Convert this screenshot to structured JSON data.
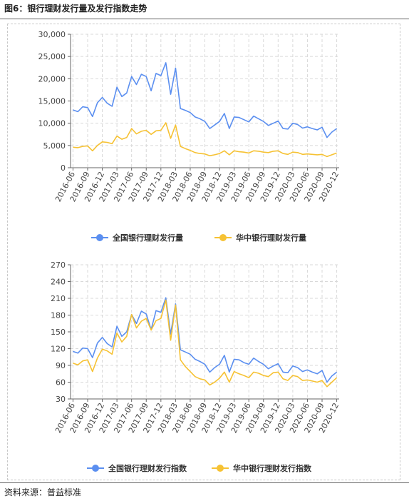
{
  "figure": {
    "title": "图6：银行理财发行量及发行指数走势",
    "source": "资料来源：普益标准"
  },
  "colors": {
    "national": "#5b8ff0",
    "central": "#f6c234",
    "grid": "#d9d9d9",
    "axis": "#666666"
  },
  "chart_data": [
    {
      "type": "line",
      "title": "",
      "xlabel": "",
      "ylabel": "",
      "ylim": [
        0,
        30000
      ],
      "yticks": [
        "0",
        "5,000",
        "10,000",
        "15,000",
        "20,000",
        "25,000",
        "30,000"
      ],
      "ytick_values": [
        0,
        5000,
        10000,
        15000,
        20000,
        25000,
        30000
      ],
      "x_tick_labels": [
        "2016-06",
        "2016-09",
        "2016-12",
        "2017-03",
        "2017-06",
        "2017-09",
        "2017-12",
        "2018-03",
        "2018-06",
        "2018-09",
        "2018-12",
        "2019-03",
        "2019-06",
        "2019-09",
        "2019-12",
        "2020-03",
        "2020-06",
        "2020-09",
        "2020-12"
      ],
      "grid": true,
      "legend_position": "bottom-center",
      "series": [
        {
          "name": "全国银行理财发行量",
          "values": [
            13000,
            12600,
            13700,
            13500,
            11500,
            14600,
            15800,
            14500,
            13800,
            18100,
            16000,
            16800,
            20500,
            18700,
            21000,
            20500,
            17300,
            21200,
            20700,
            23600,
            16500,
            22400,
            13300,
            12900,
            12400,
            11400,
            11000,
            10400,
            8800,
            9600,
            10400,
            12200,
            8800,
            11400,
            11300,
            10800,
            10300,
            11600,
            11000,
            10400,
            9500,
            10000,
            10500,
            8800,
            8700,
            10000,
            9700,
            8900,
            9200,
            8800,
            8500,
            9100,
            6800,
            8000,
            8800
          ]
        },
        {
          "name": "华中银行理财发行量",
          "values": [
            4600,
            4500,
            4800,
            4900,
            3800,
            5000,
            5800,
            5700,
            5400,
            7100,
            6400,
            6800,
            8800,
            7600,
            8200,
            8400,
            7500,
            8300,
            8400,
            10100,
            6600,
            9600,
            4800,
            4300,
            3900,
            3400,
            3200,
            3100,
            2700,
            2900,
            3200,
            3800,
            2900,
            3800,
            3600,
            3500,
            3300,
            3800,
            3700,
            3500,
            3400,
            3700,
            3800,
            3200,
            3000,
            3500,
            3400,
            3000,
            3100,
            3000,
            2900,
            3000,
            2500,
            2900,
            3300
          ]
        }
      ]
    },
    {
      "type": "line",
      "title": "",
      "xlabel": "",
      "ylabel": "",
      "ylim": [
        30,
        270
      ],
      "yticks": [
        "30",
        "60",
        "90",
        "120",
        "150",
        "180",
        "210",
        "240",
        "270"
      ],
      "ytick_values": [
        30,
        60,
        90,
        120,
        150,
        180,
        210,
        240,
        270
      ],
      "x_tick_labels": [
        "2016-06",
        "2016-09",
        "2016-12",
        "2017-03",
        "2017-06",
        "2017-09",
        "2017-12",
        "2018-03",
        "2018-06",
        "2018-09",
        "2018-12",
        "2019-03",
        "2019-06",
        "2019-09",
        "2019-12",
        "2020-03",
        "2020-06",
        "2020-09",
        "2020-12"
      ],
      "grid": true,
      "legend_position": "bottom-center",
      "series": [
        {
          "name": "全国银行理财发行指数",
          "values": [
            115,
            112,
            121,
            120,
            104,
            130,
            140,
            129,
            123,
            160,
            142,
            150,
            181,
            165,
            187,
            182,
            154,
            188,
            185,
            211,
            146,
            200,
            118,
            114,
            110,
            101,
            97,
            92,
            78,
            86,
            92,
            108,
            78,
            101,
            100,
            95,
            92,
            103,
            97,
            92,
            84,
            89,
            93,
            78,
            77,
            89,
            86,
            79,
            82,
            78,
            75,
            81,
            60,
            71,
            78
          ]
        },
        {
          "name": "华中银行理财发行指数",
          "values": [
            94,
            91,
            98,
            100,
            79,
            103,
            119,
            116,
            110,
            148,
            132,
            142,
            181,
            157,
            169,
            174,
            153,
            170,
            174,
            207,
            135,
            198,
            100,
            88,
            79,
            70,
            66,
            64,
            55,
            60,
            67,
            78,
            60,
            79,
            75,
            72,
            68,
            78,
            76,
            72,
            70,
            77,
            78,
            66,
            63,
            72,
            70,
            63,
            64,
            62,
            60,
            63,
            52,
            60,
            68
          ]
        }
      ]
    }
  ]
}
